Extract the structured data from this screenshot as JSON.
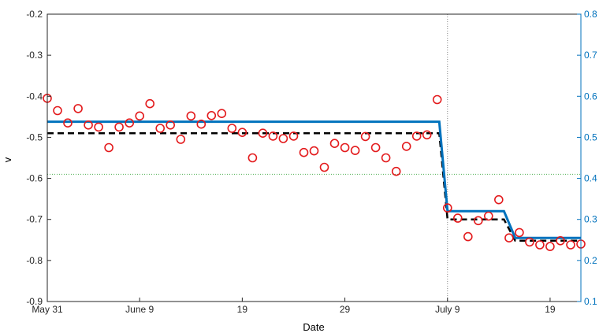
{
  "chart_data": {
    "type": "line",
    "xlabel": "Date",
    "ylabel": "v",
    "ylabel_right": "",
    "x_tick_labels": [
      "May 31",
      "June 9",
      "19",
      "29",
      "July 9",
      "19"
    ],
    "x_tick_days": [
      0,
      9,
      19,
      29,
      39,
      49
    ],
    "xlim_days": [
      0,
      52
    ],
    "ylim": [
      -0.9,
      -0.2
    ],
    "y_ticks": [
      -0.9,
      -0.8,
      -0.7,
      -0.6,
      -0.5,
      -0.4,
      -0.3,
      -0.2
    ],
    "y_tick_labels": [
      "-0.9",
      "-0.8",
      "-0.7",
      "-0.6",
      "-0.5",
      "-0.4",
      "-0.3",
      "-0.2"
    ],
    "ylim_right": [
      0.1,
      0.8
    ],
    "y_ticks_right": [
      0.1,
      0.2,
      0.3,
      0.4,
      0.5,
      0.6,
      0.7,
      0.8
    ],
    "y_tick_labels_right": [
      "0.1",
      "0.2",
      "0.3",
      "0.4",
      "0.5",
      "0.6",
      "0.7",
      "0.8"
    ],
    "vertical_line_day": 39,
    "horizontal_line_y": -0.59,
    "series": [
      {
        "kind": "scatter",
        "color": "#e31a1c",
        "x": [
          0,
          1,
          2,
          3,
          4,
          5,
          6,
          7,
          8,
          9,
          10,
          11,
          12,
          13,
          14,
          15,
          16,
          17,
          18,
          19,
          20,
          21,
          22,
          23,
          24,
          25,
          26,
          27,
          28,
          29,
          30,
          31,
          32,
          33,
          34,
          35,
          36,
          37,
          38,
          39,
          40,
          41,
          42,
          43,
          44,
          45,
          46,
          47,
          48,
          49,
          50,
          51,
          52
        ],
        "y": [
          -0.405,
          -0.435,
          -0.465,
          -0.43,
          -0.47,
          -0.475,
          -0.525,
          -0.475,
          -0.465,
          -0.448,
          -0.418,
          -0.478,
          -0.47,
          -0.505,
          -0.448,
          -0.468,
          -0.447,
          -0.442,
          -0.478,
          -0.488,
          -0.55,
          -0.49,
          -0.497,
          -0.503,
          -0.497,
          -0.537,
          -0.533,
          -0.573,
          -0.515,
          -0.525,
          -0.532,
          -0.498,
          -0.525,
          -0.55,
          -0.583,
          -0.522,
          -0.497,
          -0.494,
          -0.408,
          -0.672,
          -0.697,
          -0.742,
          -0.703,
          -0.692,
          -0.652,
          -0.745,
          -0.732,
          -0.755,
          -0.762,
          -0.766,
          -0.752,
          -0.762,
          -0.76
        ]
      },
      {
        "kind": "line",
        "style": "dashed",
        "color": "#000000",
        "x": [
          0,
          38.2,
          39,
          41,
          44.5,
          45.6,
          52
        ],
        "y": [
          -0.49,
          -0.49,
          -0.7,
          -0.7,
          -0.7,
          -0.752,
          -0.752
        ]
      },
      {
        "kind": "line",
        "style": "solid",
        "color": "#0072bd",
        "x": [
          0,
          38.2,
          39,
          41,
          44.5,
          45.6,
          52
        ],
        "y": [
          -0.462,
          -0.462,
          -0.68,
          -0.68,
          -0.68,
          -0.745,
          -0.745
        ]
      }
    ],
    "grid": false,
    "legend": "none"
  }
}
